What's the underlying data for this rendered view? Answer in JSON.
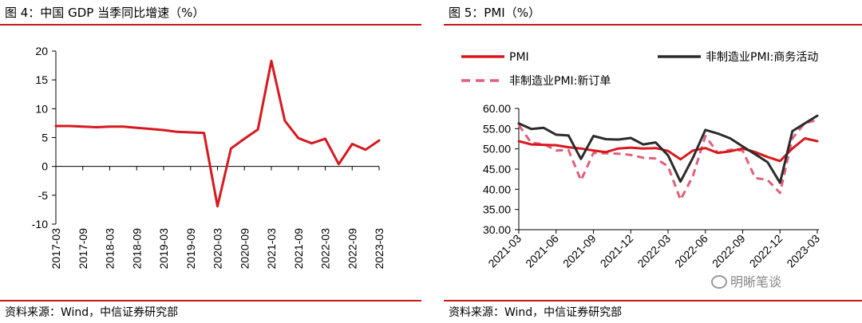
{
  "left": {
    "title": "图 4：中国 GDP 当季同比增速（%）",
    "source": "资料来源：Wind，中信证券研究部"
  },
  "right": {
    "title": "图 5：PMI（%）",
    "source": "资料来源：Wind，中信证券研究部",
    "watermark": "明晰笔谈"
  },
  "colors": {
    "red": "#d7181f",
    "black": "#2b2b2b",
    "pink": "#e0607a",
    "rule": "#c8161e"
  },
  "chart_data": [
    {
      "type": "line",
      "title": "",
      "x": [
        "2017-03",
        "2017-06",
        "2017-09",
        "2017-12",
        "2018-03",
        "2018-06",
        "2018-09",
        "2018-12",
        "2019-03",
        "2019-06",
        "2019-09",
        "2019-12",
        "2020-03",
        "2020-06",
        "2020-09",
        "2020-12",
        "2021-03",
        "2021-06",
        "2021-09",
        "2021-12",
        "2022-03",
        "2022-06",
        "2022-09",
        "2022-12",
        "2023-03"
      ],
      "x_tick_labels": [
        "2017-03",
        "2017-09",
        "2018-03",
        "2018-09",
        "2019-03",
        "2019-09",
        "2020-03",
        "2020-09",
        "2021-03",
        "2021-09",
        "2022-03",
        "2022-09",
        "2023-03"
      ],
      "series": [
        {
          "values": [
            7.0,
            7.0,
            6.9,
            6.8,
            6.9,
            6.9,
            6.7,
            6.5,
            6.3,
            6.0,
            5.9,
            5.8,
            -6.9,
            3.1,
            4.8,
            6.4,
            18.3,
            7.9,
            4.9,
            4.0,
            4.8,
            0.4,
            3.9,
            2.9,
            4.5
          ],
          "color": "#d7181f"
        }
      ],
      "ylim": [
        -10,
        20
      ],
      "y_ticks": [
        -10,
        -5,
        0,
        5,
        10,
        15,
        20
      ],
      "grid": false
    },
    {
      "type": "line",
      "title": "",
      "x": [
        "2021-03",
        "2021-04",
        "2021-05",
        "2021-06",
        "2021-07",
        "2021-08",
        "2021-09",
        "2021-10",
        "2021-11",
        "2021-12",
        "2022-01",
        "2022-02",
        "2022-03",
        "2022-04",
        "2022-05",
        "2022-06",
        "2022-07",
        "2022-08",
        "2022-09",
        "2022-10",
        "2022-11",
        "2022-12",
        "2023-01",
        "2023-02",
        "2023-03"
      ],
      "x_tick_labels": [
        "2021-03",
        "2021-06",
        "2021-09",
        "2021-12",
        "2022-03",
        "2022-06",
        "2022-09",
        "2022-12",
        "2023-03"
      ],
      "y_tick_labels": [
        "30.00",
        "35.00",
        "40.00",
        "45.00",
        "50.00",
        "55.00",
        "60.00"
      ],
      "ylim": [
        30,
        60
      ],
      "legend_position": "top",
      "grid": false,
      "series": [
        {
          "name": "PMI",
          "color": "#d7181f",
          "style": "solid",
          "values": [
            51.9,
            51.1,
            51.0,
            50.9,
            50.4,
            50.1,
            49.6,
            49.2,
            50.1,
            50.3,
            50.1,
            50.2,
            49.5,
            47.4,
            49.6,
            50.2,
            49.0,
            49.4,
            50.1,
            49.2,
            48.0,
            47.0,
            50.1,
            52.6,
            51.9
          ]
        },
        {
          "name": "非制造业PMI:商务活动",
          "color": "#2b2b2b",
          "style": "solid",
          "values": [
            56.3,
            54.9,
            55.2,
            53.5,
            53.3,
            47.5,
            53.2,
            52.4,
            52.3,
            52.7,
            51.1,
            51.6,
            48.4,
            41.9,
            47.8,
            54.7,
            53.8,
            52.6,
            50.6,
            48.7,
            46.7,
            41.6,
            54.4,
            56.3,
            58.2
          ]
        },
        {
          "name": "非制造业PMI:新订单",
          "color": "#e0607a",
          "style": "dashed",
          "values": [
            55.9,
            51.5,
            51.2,
            49.6,
            49.7,
            42.2,
            49.0,
            48.9,
            48.8,
            48.5,
            47.8,
            47.6,
            45.7,
            37.4,
            43.3,
            53.2,
            49.0,
            49.8,
            49.6,
            42.8,
            42.3,
            39.1,
            52.6,
            56.4,
            57.1
          ]
        }
      ]
    }
  ]
}
